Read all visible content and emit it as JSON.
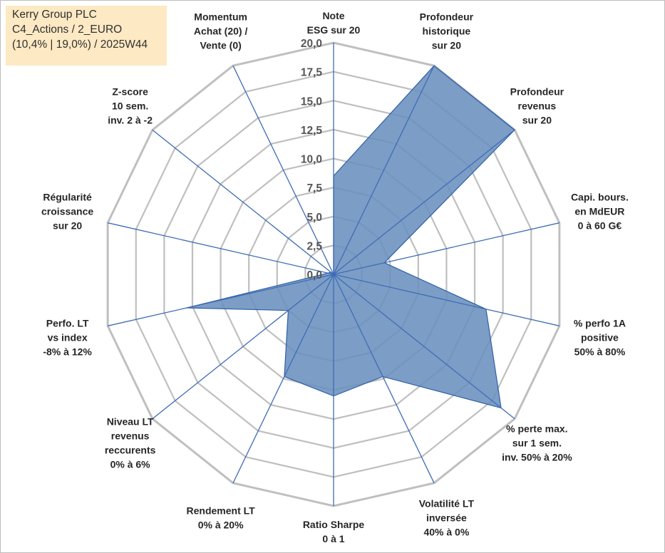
{
  "info_box": {
    "line1": "Kerry Group PLC",
    "line2": "C4_Actions / 2_EURO",
    "line3": "(10,4% | 19,0%) / 2025W44"
  },
  "chart_data": {
    "type": "radar",
    "rlim": [
      0,
      20
    ],
    "r_ticks": [
      "0,0",
      "2,5",
      "5,0",
      "7,5",
      "10,0",
      "12,5",
      "15,0",
      "17,5",
      "20,0"
    ],
    "grid": true,
    "axes": [
      {
        "label": [
          "Note",
          "ESG sur 20"
        ],
        "value": 8.5
      },
      {
        "label": [
          "Profondeur",
          "historique",
          "sur 20"
        ],
        "value": 20
      },
      {
        "label": [
          "Profondeur",
          "revenus",
          "sur 20"
        ],
        "value": 20
      },
      {
        "label": [
          "Capi. bours.",
          "en MdEUR",
          "0 à 60 G€"
        ],
        "value": 4.5
      },
      {
        "label": [
          "% perfo 1A",
          "positive",
          "50% à 80%"
        ],
        "value": 13.5
      },
      {
        "label": [
          "% perte max.",
          "sur 1 sem.",
          "inv. 50% à 20%"
        ],
        "value": 18.5
      },
      {
        "label": [
          "Volatilité LT",
          "inversée",
          "40% à 0%"
        ],
        "value": 9.8
      },
      {
        "label": [
          "Ratio Sharpe",
          "0 à 1"
        ],
        "value": 10.5
      },
      {
        "label": [
          "Rendement LT",
          "0% à 20%"
        ],
        "value": 9.8
      },
      {
        "label": [
          "Niveau LT",
          "revenus",
          "reccurents",
          "0% à 6%"
        ],
        "value": 5
      },
      {
        "label": [
          "Perfo. LT",
          "vs index",
          "-8% à 12%"
        ],
        "value": 13
      },
      {
        "label": [
          "Régularité",
          "croissance",
          "sur 20"
        ],
        "value": 0.5
      },
      {
        "label": [
          "Z-score",
          "10 sem.",
          "inv. 2 à -2"
        ],
        "value": 0.3
      },
      {
        "label": [
          "Momentum",
          "Achat (20) /",
          "Vente (0)"
        ],
        "value": 0
      }
    ],
    "colors": {
      "fill": "#6a8fbe",
      "fill_opacity": 0.88,
      "outline": "#2e5fa6",
      "spoke": "#3f6cb5",
      "grid": "#bfbfbf"
    }
  }
}
